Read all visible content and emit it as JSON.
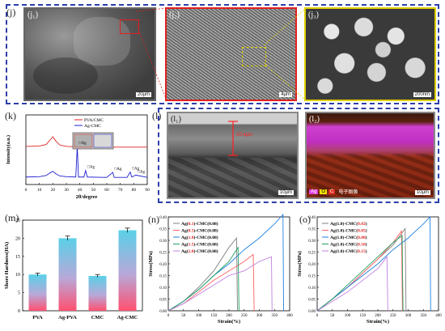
{
  "panel_j": {
    "label": "(j)",
    "sub": [
      {
        "tag": "(j₁)",
        "scale": "20μm"
      },
      {
        "tag": "(j₂)",
        "scale": "4μm"
      },
      {
        "tag": "(j₃)",
        "scale": "200nm"
      }
    ],
    "colors": {
      "frame": "#2b3fa8",
      "zoom1": "#e02020",
      "zoom2": "#e0d000"
    }
  },
  "panel_k": {
    "label": "(k)",
    "chart_data": {
      "type": "line",
      "xlabel": "2θ/degree",
      "ylabel": "Intensity(a.u.)",
      "xlim": [
        0,
        90
      ],
      "xticks": [
        0,
        10,
        20,
        30,
        40,
        50,
        60,
        70,
        80,
        90
      ],
      "series": [
        {
          "name": "PVA/CMC",
          "color": "#e02020",
          "offset": 0.62,
          "x": [
            0,
            10,
            15,
            18,
            20,
            22,
            25,
            30,
            40,
            50,
            60,
            70,
            80,
            90
          ],
          "y": [
            0.05,
            0.06,
            0.1,
            0.22,
            0.3,
            0.2,
            0.09,
            0.05,
            0.04,
            0.04,
            0.03,
            0.03,
            0.03,
            0.03
          ]
        },
        {
          "name": "Ag-CMC",
          "color": "#2020d0",
          "offset": 0.18,
          "x": [
            0,
            10,
            15,
            18,
            20,
            22,
            25,
            30,
            37,
            38.1,
            39,
            43,
            44.3,
            45.5,
            60,
            64.4,
            65.5,
            75,
            77.4,
            78.5,
            81.5,
            90
          ],
          "y": [
            0.05,
            0.06,
            0.09,
            0.16,
            0.2,
            0.14,
            0.08,
            0.06,
            0.05,
            0.85,
            0.05,
            0.05,
            0.22,
            0.05,
            0.04,
            0.17,
            0.04,
            0.04,
            0.18,
            0.05,
            0.1,
            0.04
          ]
        }
      ],
      "peak_labels": [
        {
          "x": 38.1,
          "text": "Ag"
        },
        {
          "x": 44.3,
          "text": "Ag"
        },
        {
          "x": 64.4,
          "text": "Ag"
        },
        {
          "x": 77.4,
          "text": "Ag"
        },
        {
          "x": 81.5,
          "text": "Ag"
        }
      ]
    }
  },
  "panel_l": {
    "label": "(l)",
    "sub": [
      {
        "tag": "(l₁)",
        "scale": "10μm",
        "thickness": "20.4μm"
      },
      {
        "tag": "(l₂)",
        "scale": "10μm"
      }
    ],
    "legend": [
      "Ag",
      "O",
      "C",
      "电子图像"
    ],
    "legend_colors": [
      "#e040e0",
      "#f0e000",
      "#e03020"
    ]
  },
  "panel_m": {
    "label": "(m)",
    "chart_data": {
      "type": "bar",
      "categories": [
        "PVA",
        "Ag-PVA",
        "CMC",
        "Ag-CMC"
      ],
      "values": [
        10.0,
        20.0,
        9.6,
        22.2
      ],
      "errors": [
        0.4,
        0.6,
        0.4,
        0.6
      ],
      "ylabel": "Shore Hardness(HA)",
      "ylim": [
        0,
        25
      ],
      "yticks": [
        0,
        5,
        10,
        15,
        20,
        25
      ]
    }
  },
  "panel_n": {
    "label": "(n)",
    "chart_data": {
      "type": "line",
      "xlabel": "Strain(%)",
      "ylabel": "Stress(MPa)",
      "xlim": [
        0,
        400
      ],
      "ylim": [
        0,
        0.4
      ],
      "xticks": [
        0,
        50,
        100,
        150,
        200,
        250,
        300,
        350,
        400
      ],
      "yticks": [
        0.0,
        0.05,
        0.1,
        0.15,
        0.2,
        0.25,
        0.3,
        0.35,
        0.4
      ],
      "legend": [
        {
          "pre": "Ag(",
          "hl": "0.1",
          "post": ")-CMC(0.08)",
          "color": "#808080"
        },
        {
          "pre": "Ag(",
          "hl": "0.5",
          "post": ")-CMC(0.08)",
          "color": "#ff6060"
        },
        {
          "pre": "Ag(",
          "hl": "1.0",
          "post": ")-CMC(0.08)",
          "color": "#2080e0"
        },
        {
          "pre": "Ag(",
          "hl": "1.5",
          "post": ")-CMC(0.08)",
          "color": "#20a060"
        },
        {
          "pre": "Ag(",
          "hl": "2.0",
          "post": ")-CMC(0.08)",
          "color": "#c080e0"
        }
      ],
      "series": [
        {
          "x": [
            0,
            50,
            100,
            150,
            200,
            225,
            228
          ],
          "y": [
            0,
            0.04,
            0.1,
            0.17,
            0.27,
            0.31,
            0.0
          ],
          "color": "#808080"
        },
        {
          "x": [
            0,
            50,
            100,
            150,
            200,
            250,
            280,
            283
          ],
          "y": [
            0,
            0.03,
            0.08,
            0.13,
            0.17,
            0.21,
            0.24,
            0.0
          ],
          "color": "#ff6060"
        },
        {
          "x": [
            0,
            50,
            100,
            150,
            200,
            250,
            300,
            350,
            378,
            380
          ],
          "y": [
            0,
            0.04,
            0.09,
            0.15,
            0.2,
            0.26,
            0.31,
            0.37,
            0.41,
            0.0
          ],
          "color": "#2080e0"
        },
        {
          "x": [
            0,
            50,
            100,
            150,
            200,
            230,
            233
          ],
          "y": [
            0,
            0.04,
            0.09,
            0.15,
            0.21,
            0.27,
            0.0
          ],
          "color": "#20a060"
        },
        {
          "x": [
            0,
            50,
            100,
            150,
            200,
            250,
            300,
            340,
            342
          ],
          "y": [
            0,
            0.03,
            0.07,
            0.11,
            0.15,
            0.17,
            0.21,
            0.23,
            0.0
          ],
          "color": "#c080e0"
        }
      ]
    }
  },
  "panel_o": {
    "label": "(o)",
    "chart_data": {
      "type": "line",
      "xlabel": "Strain(%)",
      "ylabel": "Stress(MPa)",
      "xlim": [
        0,
        400
      ],
      "ylim": [
        0,
        0.4
      ],
      "xticks": [
        0,
        50,
        100,
        150,
        200,
        250,
        300,
        350,
        400
      ],
      "yticks": [
        0.0,
        0.05,
        0.1,
        0.15,
        0.2,
        0.25,
        0.3,
        0.35,
        0.4
      ],
      "legend": [
        {
          "pre": "Ag(1.0)-CMC(",
          "hl": "0.02",
          "post": ")",
          "color": "#808080"
        },
        {
          "pre": "Ag(1.0)-CMC(",
          "hl": "0.05",
          "post": ")",
          "color": "#ff6060"
        },
        {
          "pre": "Ag(1.0)-CMC(",
          "hl": "0.08",
          "post": ")",
          "color": "#2080e0"
        },
        {
          "pre": "Ag(1.0)-CMC(",
          "hl": "0.10",
          "post": ")",
          "color": "#20a060"
        },
        {
          "pre": "Ag(1.0)-CMC(",
          "hl": "0.15",
          "post": ")",
          "color": "#c080e0"
        }
      ],
      "series": [
        {
          "x": [
            0,
            50,
            100,
            150,
            200,
            250,
            290,
            293
          ],
          "y": [
            0,
            0.05,
            0.1,
            0.16,
            0.22,
            0.28,
            0.35,
            0.0
          ],
          "color": "#808080"
        },
        {
          "x": [
            0,
            50,
            100,
            150,
            200,
            250,
            278,
            281
          ],
          "y": [
            0,
            0.05,
            0.1,
            0.16,
            0.22,
            0.29,
            0.34,
            0.0
          ],
          "color": "#ff6060"
        },
        {
          "x": [
            0,
            50,
            100,
            150,
            200,
            250,
            300,
            350,
            372,
            374
          ],
          "y": [
            0,
            0.05,
            0.1,
            0.15,
            0.2,
            0.26,
            0.31,
            0.37,
            0.4,
            0.0
          ],
          "color": "#2080e0"
        },
        {
          "x": [
            0,
            50,
            100,
            150,
            200,
            250,
            280,
            283
          ],
          "y": [
            0,
            0.05,
            0.11,
            0.17,
            0.23,
            0.29,
            0.32,
            0.0
          ],
          "color": "#20a060"
        },
        {
          "x": [
            0,
            50,
            100,
            150,
            200,
            230,
            233
          ],
          "y": [
            0,
            0.04,
            0.08,
            0.13,
            0.18,
            0.23,
            0.0
          ],
          "color": "#c080e0"
        }
      ]
    }
  }
}
